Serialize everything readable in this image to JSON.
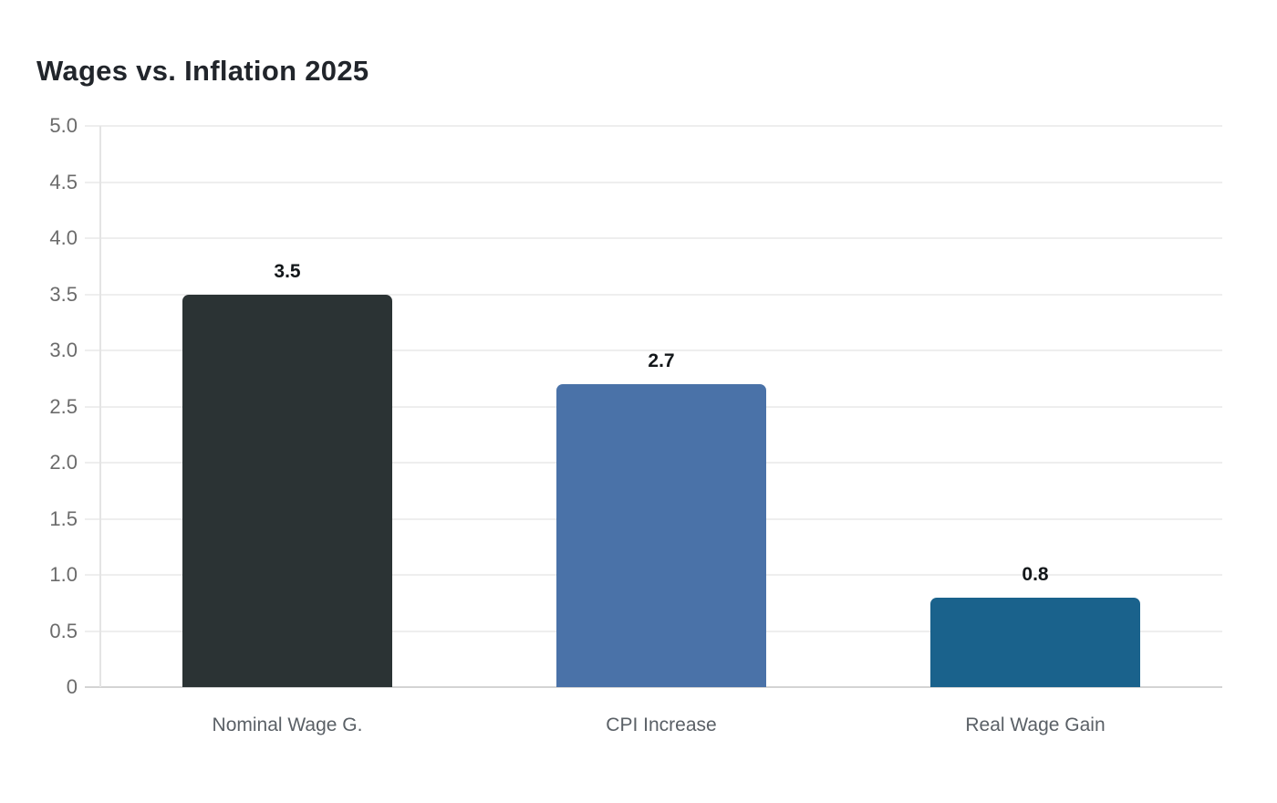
{
  "title": "Wages vs. Inflation 2025",
  "chart_data": {
    "type": "bar",
    "title": "Wages vs. Inflation 2025",
    "categories": [
      "Nominal Wage G.",
      "CPI Increase",
      "Real Wage Gain"
    ],
    "values": [
      3.5,
      2.7,
      0.8
    ],
    "value_labels": [
      "3.5",
      "2.7",
      "0.8"
    ],
    "bar_colors": [
      "#2b3334",
      "#4a72a8",
      "#1a628c"
    ],
    "xlabel": "",
    "ylabel": "",
    "ylim": [
      0,
      5
    ],
    "ytick_step": 0.5,
    "ytick_labels": [
      "5.0",
      "4.5",
      "4.0",
      "3.5",
      "3.0",
      "2.5",
      "2.0",
      "1.5",
      "1.0",
      "0.5",
      "0"
    ],
    "grid": true,
    "legend": false
  },
  "colors": {
    "background": "#ffffff",
    "title_text": "#21252b",
    "grid_line": "#eeeeee",
    "baseline": "#d4d4d4",
    "axis_line": "#e4e4e4",
    "tick_label": "#6b6b6b",
    "category_label": "#5a6066",
    "value_label": "#13171a"
  }
}
